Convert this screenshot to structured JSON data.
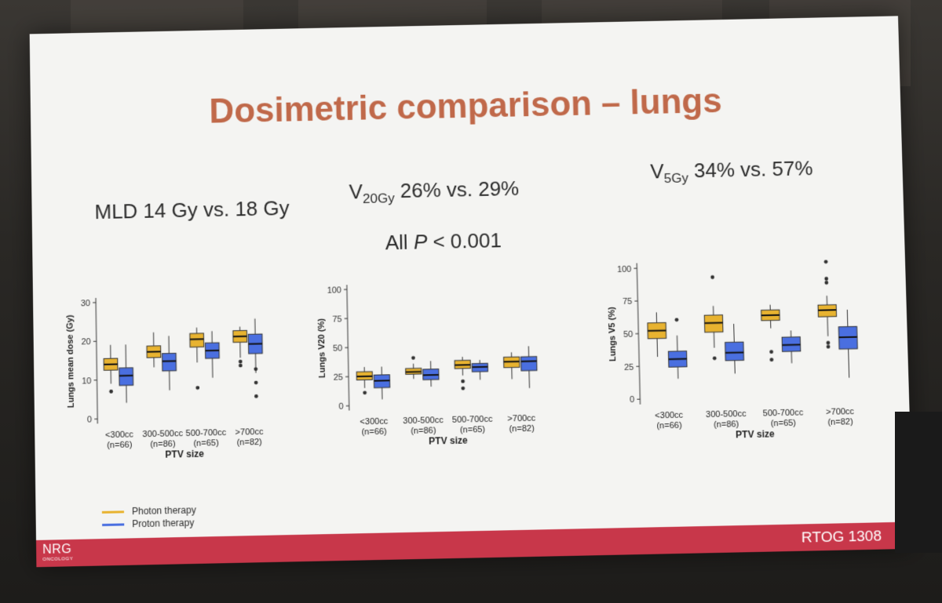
{
  "slide": {
    "title": "Dosimetric comparison – lungs",
    "stat_mld": "MLD 14 Gy vs. 18 Gy",
    "stat_v20": {
      "prefix": "V",
      "sub": "20Gy",
      "text": " 26% vs. 29%"
    },
    "stat_v5": {
      "prefix": "V",
      "sub": "5Gy",
      "text": " 34% vs. 57%"
    },
    "stat_p": {
      "prefix": "All ",
      "italic": "P",
      "text": " < 0.001"
    },
    "footer": {
      "logo": "NRG",
      "logo_sub": "ONCOLOGY",
      "trial": "RTOG 1308"
    },
    "legend": [
      {
        "label": "Photon therapy",
        "color": "#e8b330"
      },
      {
        "label": "Proton therapy",
        "color": "#4a6fe0"
      }
    ]
  },
  "colors": {
    "photon": "#e8b330",
    "proton": "#4a6fe0",
    "title": "#c0694a",
    "footer": "#c8374a"
  },
  "chart_data": [
    {
      "type": "box",
      "ylabel": "Lungs mean dose (Gy)",
      "xlabel": "PTV size",
      "ylim": [
        0,
        30
      ],
      "yticks": [
        0,
        10,
        20,
        30
      ],
      "categories": [
        "<300cc",
        "300-500cc",
        "500-700cc",
        ">700cc"
      ],
      "counts": [
        "(n=66)",
        "(n=86)",
        "(n=65)",
        "(n=82)"
      ],
      "series": [
        {
          "name": "Photon therapy",
          "boxes": [
            {
              "min": 9,
              "q1": 12.5,
              "median": 14,
              "q3": 15.5,
              "max": 19,
              "outliers": [
                7
              ]
            },
            {
              "min": 13,
              "q1": 15.5,
              "median": 17,
              "q3": 18.5,
              "max": 22,
              "outliers": []
            },
            {
              "min": 14,
              "q1": 18,
              "median": 20,
              "q3": 21.5,
              "max": 23,
              "outliers": [
                7.5
              ]
            },
            {
              "min": 15,
              "q1": 19,
              "median": 20.5,
              "q3": 22,
              "max": 23,
              "outliers": [
                13,
                14
              ]
            }
          ]
        },
        {
          "name": "Proton therapy",
          "boxes": [
            {
              "min": 4,
              "q1": 8.5,
              "median": 11,
              "q3": 13,
              "max": 19,
              "outliers": []
            },
            {
              "min": 7,
              "q1": 12,
              "median": 14.5,
              "q3": 16.5,
              "max": 21,
              "outliers": []
            },
            {
              "min": 10,
              "q1": 15,
              "median": 17,
              "q3": 19,
              "max": 22,
              "outliers": []
            },
            {
              "min": 11,
              "q1": 16,
              "median": 18.5,
              "q3": 21,
              "max": 25,
              "outliers": [
                5,
                8.5,
                12
              ]
            }
          ]
        }
      ]
    },
    {
      "type": "box",
      "ylabel": "Lungs V20 (%)",
      "xlabel": "PTV size",
      "ylim": [
        0,
        100
      ],
      "yticks": [
        0,
        25,
        50,
        75,
        100
      ],
      "categories": [
        "<300cc",
        "300-500cc",
        "500-700cc",
        ">700cc"
      ],
      "counts": [
        "(n=66)",
        "(n=86)",
        "(n=65)",
        "(n=82)"
      ],
      "series": [
        {
          "name": "Photon therapy",
          "boxes": [
            {
              "min": 15,
              "q1": 22,
              "median": 25,
              "q3": 29,
              "max": 33,
              "outliers": [
                11
              ]
            },
            {
              "min": 22,
              "q1": 26,
              "median": 28,
              "q3": 31,
              "max": 35,
              "outliers": [
                40
              ]
            },
            {
              "min": 24,
              "q1": 30,
              "median": 33,
              "q3": 37,
              "max": 40,
              "outliers": [
                13,
                19
              ]
            },
            {
              "min": 20,
              "q1": 30,
              "median": 35,
              "q3": 39,
              "max": 43,
              "outliers": []
            }
          ]
        },
        {
          "name": "Proton therapy",
          "boxes": [
            {
              "min": 5,
              "q1": 15,
              "median": 21,
              "q3": 26,
              "max": 33,
              "outliers": []
            },
            {
              "min": 15,
              "q1": 21,
              "median": 25,
              "q3": 30,
              "max": 37,
              "outliers": []
            },
            {
              "min": 20,
              "q1": 27,
              "median": 31,
              "q3": 34,
              "max": 37,
              "outliers": []
            },
            {
              "min": 12,
              "q1": 27,
              "median": 35,
              "q3": 39,
              "max": 48,
              "outliers": []
            }
          ]
        }
      ]
    },
    {
      "type": "box",
      "ylabel": "Lungs V5 (%)",
      "xlabel": "PTV size",
      "ylim": [
        0,
        100
      ],
      "yticks": [
        0,
        25,
        50,
        75,
        100
      ],
      "categories": [
        "<300cc",
        "300-500cc",
        "500-700cc",
        ">700cc"
      ],
      "counts": [
        "(n=66)",
        "(n=86)",
        "(n=65)",
        "(n=82)"
      ],
      "series": [
        {
          "name": "Photon therapy",
          "boxes": [
            {
              "min": 32,
              "q1": 46,
              "median": 52,
              "q3": 58,
              "max": 66,
              "outliers": []
            },
            {
              "min": 38,
              "q1": 50,
              "median": 57,
              "q3": 63,
              "max": 70,
              "outliers": [
                30,
                92
              ]
            },
            {
              "min": 52,
              "q1": 58,
              "median": 62,
              "q3": 66,
              "max": 70,
              "outliers": [
                28,
                34
              ]
            },
            {
              "min": 45,
              "q1": 60,
              "median": 65,
              "q3": 69,
              "max": 76,
              "outliers": [
                37,
                40,
                86,
                89,
                102
              ]
            }
          ]
        },
        {
          "name": "Proton therapy",
          "boxes": [
            {
              "min": 15,
              "q1": 24,
              "median": 30,
              "q3": 36,
              "max": 48,
              "outliers": [
                60
              ]
            },
            {
              "min": 18,
              "q1": 28,
              "median": 34,
              "q3": 42,
              "max": 56,
              "outliers": []
            },
            {
              "min": 25,
              "q1": 34,
              "median": 39,
              "q3": 45,
              "max": 50,
              "outliers": []
            },
            {
              "min": 13,
              "q1": 35,
              "median": 44,
              "q3": 52,
              "max": 65,
              "outliers": []
            }
          ]
        }
      ]
    }
  ]
}
